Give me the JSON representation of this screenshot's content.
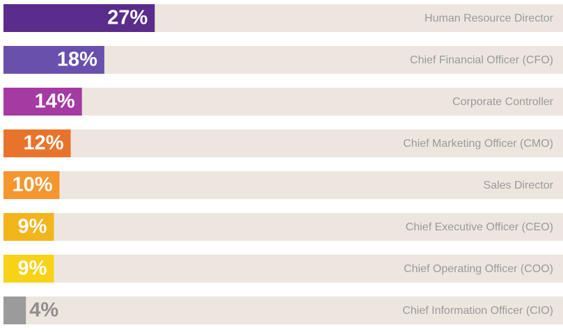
{
  "chart_data": {
    "type": "bar",
    "orientation": "horizontal",
    "categories": [
      "Human Resource Director",
      "Chief Financial Officer (CFO)",
      "Corporate Controller",
      "Chief Marketing Officer (CMO)",
      "Sales Director",
      "Chief Executive Officer (CEO)",
      "Chief Operating Officer (COO)",
      "Chief Information Officer (CIO)"
    ],
    "values": [
      27,
      18,
      14,
      12,
      10,
      9,
      9,
      4
    ],
    "value_labels": [
      "27%",
      "18%",
      "14%",
      "12%",
      "10%",
      "9%",
      "9%",
      "4%"
    ],
    "colors": [
      "#5a2c8c",
      "#6a50ad",
      "#a53aa3",
      "#e8742b",
      "#f5962f",
      "#f2b51b",
      "#f7d217",
      "#9b9b9b"
    ]
  }
}
